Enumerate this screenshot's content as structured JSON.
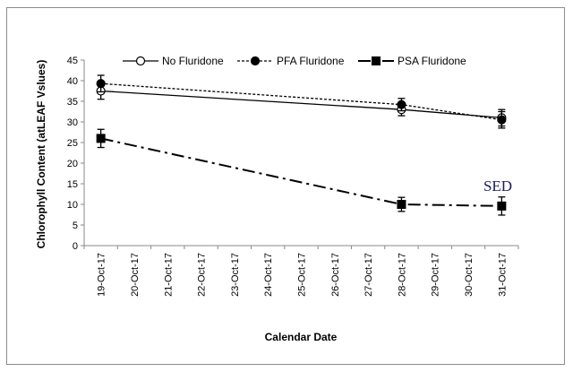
{
  "chart_data": {
    "type": "line",
    "title": "",
    "xlabel": "Calendar Date",
    "ylabel": "Chlorophyll Content (atLEAF Vslues)",
    "categories": [
      "19-Oct-17",
      "20-Oct-17",
      "21-Oct-17",
      "22-Oct-17",
      "23-Oct-17",
      "24-Oct-17",
      "25-Oct-17",
      "26-Oct-17",
      "27-Oct-17",
      "28-Oct-17",
      "29-Oct-17",
      "30-Oct-17",
      "31-Oct-17"
    ],
    "ylim": [
      0,
      45
    ],
    "yticks": [
      0,
      5,
      10,
      15,
      20,
      25,
      30,
      35,
      40,
      45
    ],
    "grid": false,
    "legend_position": "top",
    "annotation": "SED",
    "series": [
      {
        "name": "No Fluridone",
        "marker": "open-circle",
        "line": "solid",
        "x": [
          "19-Oct-17",
          "28-Oct-17",
          "31-Oct-17"
        ],
        "values": [
          37.5,
          33.0,
          31.0
        ],
        "errors": [
          2.0,
          1.5,
          2.0
        ]
      },
      {
        "name": "PFA Fluridone",
        "marker": "filled-circle",
        "line": "dotted",
        "x": [
          "19-Oct-17",
          "28-Oct-17",
          "31-Oct-17"
        ],
        "values": [
          39.3,
          34.2,
          30.5
        ],
        "errors": [
          2.0,
          1.5,
          2.0
        ]
      },
      {
        "name": "PSA Fluridone",
        "marker": "filled-square",
        "line": "dash-dot",
        "x": [
          "19-Oct-17",
          "28-Oct-17",
          "31-Oct-17"
        ],
        "values": [
          26.0,
          10.0,
          9.6
        ],
        "errors": [
          2.2,
          1.7,
          2.2
        ]
      }
    ]
  }
}
